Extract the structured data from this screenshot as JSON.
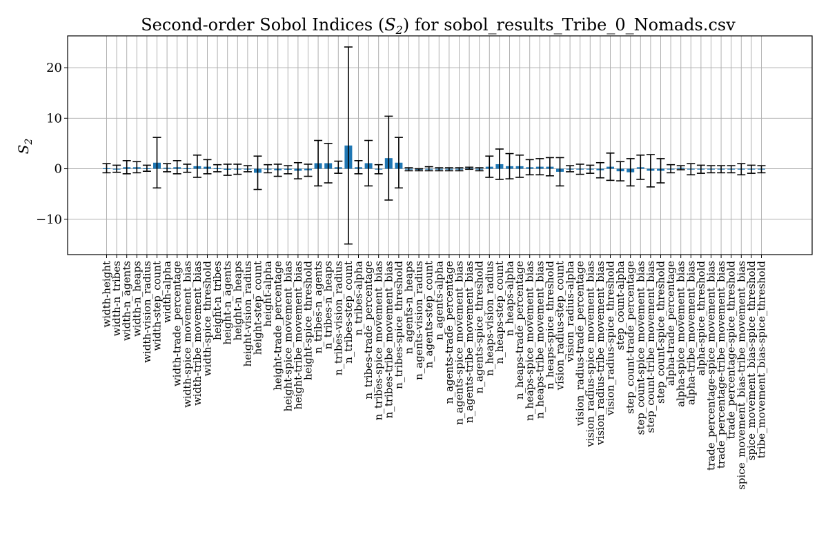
{
  "chart_data": {
    "type": "bar",
    "title": "Second-order Sobol Indices (S_2) for sobol_results_Tribe_0_Nomads.csv",
    "title_prefix": "Second-order Sobol Indices (",
    "title_symbol": "S",
    "title_subscript": "2",
    "title_suffix": ") for sobol_results_Tribe_0_Nomads.csv",
    "ylabel": "S_2",
    "ylabel_symbol": "S",
    "ylabel_subscript": "2",
    "xlabel": "",
    "ylim": [
      -17,
      26.3
    ],
    "yticks": [
      -10,
      0,
      10,
      20
    ],
    "ytick_labels": [
      "−10",
      "0",
      "10",
      "20"
    ],
    "grid": true,
    "bar_color": "#1f77b4",
    "categories": [
      "width-height",
      "width-n_tribes",
      "width-n_agents",
      "width-n_heaps",
      "width-vision_radius",
      "width-step_count",
      "width-alpha",
      "width-trade_percentage",
      "width-spice_movement_bias",
      "width-tribe_movement_bias",
      "width-spice_threshold",
      "height-n_tribes",
      "height-n_agents",
      "height-n_heaps",
      "height-vision_radius",
      "height-step_count",
      "height-alpha",
      "height-trade_percentage",
      "height-spice_movement_bias",
      "height-tribe_movement_bias",
      "height-spice_threshold",
      "n_tribes-n_agents",
      "n_tribes-n_heaps",
      "n_tribes-vision_radius",
      "n_tribes-step_count",
      "n_tribes-alpha",
      "n_tribes-trade_percentage",
      "n_tribes-spice_movement_bias",
      "n_tribes-tribe_movement_bias",
      "n_tribes-spice_threshold",
      "n_agents-n_heaps",
      "n_agents-vision_radius",
      "n_agents-step_count",
      "n_agents-alpha",
      "n_agents-trade_percentage",
      "n_agents-spice_movement_bias",
      "n_agents-tribe_movement_bias",
      "n_agents-spice_threshold",
      "n_heaps-vision_radius",
      "n_heaps-step_count",
      "n_heaps-alpha",
      "n_heaps-trade_percentage",
      "n_heaps-spice_movement_bias",
      "n_heaps-tribe_movement_bias",
      "n_heaps-spice_threshold",
      "vision_radius-step_count",
      "vision_radius-alpha",
      "vision_radius-trade_percentage",
      "vision_radius-spice_movement_bias",
      "vision_radius-tribe_movement_bias",
      "vision_radius-spice_threshold",
      "step_count-alpha",
      "step_count-trade_percentage",
      "step_count-spice_movement_bias",
      "step_count-tribe_movement_bias",
      "step_count-spice_threshold",
      "alpha-trade_percentage",
      "alpha-spice_movement_bias",
      "alpha-tribe_movement_bias",
      "alpha-spice_threshold",
      "trade_percentage-spice_movement_bias",
      "trade_percentage-tribe_movement_bias",
      "trade_percentage-spice_threshold",
      "spice_movement_bias-tribe_movement_bias",
      "spice_movement_bias-spice_threshold",
      "tribe_movement_bias-spice_threshold"
    ],
    "values": [
      0.1,
      0.0,
      0.3,
      0.3,
      0.1,
      1.2,
      0.2,
      0.3,
      0.1,
      0.5,
      0.4,
      0.1,
      -0.2,
      -0.1,
      0.0,
      -0.8,
      0.0,
      -0.3,
      -0.2,
      -0.4,
      -0.3,
      1.1,
      1.1,
      0.3,
      4.6,
      0.3,
      1.1,
      -0.1,
      2.1,
      1.2,
      -0.1,
      -0.2,
      0.0,
      -0.1,
      -0.1,
      -0.1,
      0.1,
      -0.1,
      0.4,
      0.9,
      0.5,
      0.5,
      0.3,
      0.4,
      0.4,
      -0.6,
      0.0,
      -0.1,
      -0.1,
      -0.3,
      0.4,
      -0.5,
      -0.7,
      0.3,
      -0.4,
      -0.4,
      0.0,
      0.2,
      -0.1,
      -0.1,
      -0.1,
      -0.1,
      -0.1,
      -0.1,
      -0.1,
      -0.1
    ],
    "errors": [
      0.9,
      0.7,
      1.3,
      1.1,
      0.6,
      5.0,
      0.8,
      1.3,
      0.8,
      2.2,
      1.4,
      0.7,
      1.1,
      1.0,
      0.6,
      3.3,
      0.8,
      1.2,
      0.8,
      1.6,
      1.2,
      4.5,
      3.9,
      1.2,
      19.5,
      1.3,
      4.5,
      0.9,
      8.3,
      5.0,
      0.3,
      0.2,
      0.4,
      0.3,
      0.3,
      0.3,
      0.2,
      0.3,
      2.1,
      3.0,
      2.5,
      2.2,
      1.5,
      1.6,
      1.8,
      2.8,
      0.6,
      1.0,
      0.8,
      1.5,
      2.7,
      1.9,
      2.7,
      2.4,
      3.2,
      2.4,
      0.8,
      0.4,
      1.1,
      0.8,
      0.7,
      0.7,
      0.7,
      1.1,
      0.8,
      0.7
    ]
  }
}
